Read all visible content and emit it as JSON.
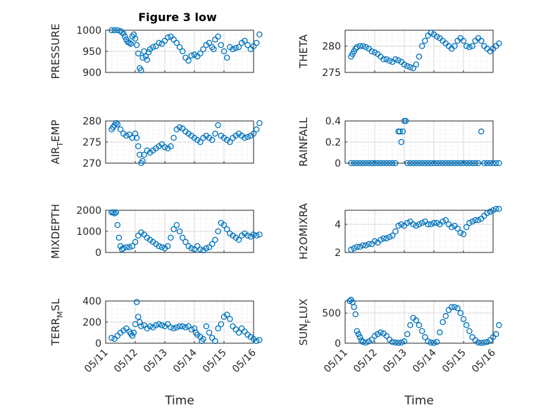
{
  "title": "Figure 3 low",
  "style": {
    "marker_color": "#0072BD",
    "axis_color": "#262626",
    "grid_color": "#d9d9d9",
    "background": "#ffffff"
  },
  "chart_data": [
    {
      "type": "scatter",
      "title": "Figure 3 low",
      "ylabel": "PRESSURE",
      "ylim": [
        900,
        1000
      ],
      "yticks": [
        900,
        950,
        1000
      ],
      "xlim": [
        0,
        5
      ],
      "grid": true,
      "minor_grid": true,
      "xlabel": "",
      "xticklabels": [],
      "series": [
        {
          "x": [
            0.2,
            0.3,
            0.4,
            0.5,
            0.55,
            0.6,
            0.65,
            0.7,
            0.75,
            0.8,
            0.85,
            0.9,
            0.95,
            1.0,
            1.05,
            1.1,
            1.15,
            1.2,
            1.25,
            1.3,
            1.35,
            1.4,
            1.45,
            1.5,
            1.6,
            1.7,
            1.8,
            1.9,
            2.0,
            2.1,
            2.2,
            2.3,
            2.4,
            2.5,
            2.6,
            2.7,
            2.8,
            2.9,
            3.0,
            3.1,
            3.2,
            3.3,
            3.4,
            3.5,
            3.6,
            3.65,
            3.7,
            3.8,
            3.9,
            4.0,
            4.1,
            4.2,
            4.3,
            4.4,
            4.5,
            4.6,
            4.7,
            4.8,
            4.9,
            5.0,
            5.1,
            5.2
          ],
          "y": [
            1000,
            1000,
            1000,
            998,
            995,
            992,
            985,
            978,
            972,
            970,
            968,
            985,
            990,
            980,
            965,
            945,
            910,
            905,
            935,
            950,
            938,
            930,
            948,
            955,
            960,
            962,
            970,
            968,
            975,
            983,
            985,
            978,
            970,
            960,
            950,
            935,
            928,
            940,
            942,
            938,
            945,
            955,
            965,
            970,
            960,
            955,
            978,
            985,
            965,
            950,
            935,
            960,
            955,
            958,
            960,
            970,
            975,
            965,
            955,
            962,
            970,
            990
          ]
        }
      ]
    },
    {
      "type": "scatter",
      "ylabel": "THETA",
      "ylim": [
        275,
        283
      ],
      "yticks": [
        275,
        280
      ],
      "xlim": [
        0,
        5
      ],
      "grid": true,
      "minor_grid": true,
      "xlabel": "",
      "xticklabels": [],
      "series": [
        {
          "x": [
            0.2,
            0.25,
            0.3,
            0.35,
            0.4,
            0.5,
            0.6,
            0.7,
            0.8,
            0.9,
            1.0,
            1.1,
            1.2,
            1.3,
            1.4,
            1.5,
            1.6,
            1.7,
            1.8,
            1.9,
            2.0,
            2.1,
            2.2,
            2.3,
            2.4,
            2.5,
            2.6,
            2.7,
            2.8,
            2.9,
            3.0,
            3.1,
            3.2,
            3.3,
            3.4,
            3.5,
            3.6,
            3.7,
            3.8,
            3.9,
            4.0,
            4.1,
            4.2,
            4.3,
            4.4,
            4.5,
            4.6,
            4.7,
            4.8,
            4.9,
            5.0,
            5.1,
            5.2
          ],
          "y": [
            278,
            278.5,
            279,
            279.5,
            279.8,
            280,
            280,
            279.8,
            279.5,
            279,
            278.8,
            278.5,
            278,
            277.5,
            277.5,
            277.2,
            277,
            277.5,
            277.3,
            277,
            276.5,
            276.2,
            276,
            275.8,
            276.5,
            278,
            280,
            281,
            282,
            282.5,
            282.2,
            281.8,
            281.5,
            281,
            280.5,
            280,
            279.5,
            280,
            281,
            281.5,
            281,
            280,
            279.8,
            280,
            281,
            281.5,
            281,
            280,
            279.5,
            279,
            279.5,
            280,
            280.5
          ]
        }
      ]
    },
    {
      "type": "scatter",
      "ylabel": "AIR_TEMP",
      "ylim": [
        270,
        280
      ],
      "yticks": [
        270,
        275,
        280
      ],
      "xlim": [
        0,
        5
      ],
      "grid": true,
      "minor_grid": true,
      "xlabel": "",
      "xticklabels": [],
      "series": [
        {
          "x": [
            0.2,
            0.25,
            0.3,
            0.35,
            0.4,
            0.5,
            0.6,
            0.7,
            0.8,
            0.9,
            1.0,
            1.05,
            1.1,
            1.15,
            1.2,
            1.25,
            1.3,
            1.4,
            1.5,
            1.6,
            1.7,
            1.8,
            1.9,
            2.0,
            2.1,
            2.2,
            2.3,
            2.4,
            2.5,
            2.6,
            2.7,
            2.8,
            2.9,
            3.0,
            3.1,
            3.2,
            3.3,
            3.4,
            3.5,
            3.6,
            3.7,
            3.8,
            3.9,
            4.0,
            4.1,
            4.2,
            4.3,
            4.4,
            4.5,
            4.6,
            4.7,
            4.8,
            4.9,
            5.0,
            5.1,
            5.2
          ],
          "y": [
            278,
            278.5,
            279,
            279.5,
            279.2,
            278,
            277,
            276.5,
            276.8,
            276,
            277,
            276,
            274,
            272,
            270,
            270.5,
            272,
            273,
            272.5,
            273,
            273.5,
            274,
            274.5,
            273.8,
            273.5,
            274,
            276,
            278,
            278.5,
            278.2,
            277.5,
            277,
            276.5,
            276,
            275.5,
            275,
            276,
            276.5,
            276,
            275.5,
            277,
            279,
            276.5,
            276,
            275.5,
            275,
            276,
            276.5,
            277,
            276.5,
            276,
            276.2,
            276.5,
            277,
            278,
            279.5
          ]
        }
      ]
    },
    {
      "type": "scatter",
      "ylabel": "RAINFALL",
      "ylim": [
        0,
        0.4
      ],
      "yticks": [
        0,
        0.2,
        0.4
      ],
      "xlim": [
        0,
        5
      ],
      "grid": true,
      "minor_grid": true,
      "xlabel": "",
      "xticklabels": [],
      "series": [
        {
          "x": [
            0.2,
            0.3,
            0.4,
            0.5,
            0.6,
            0.7,
            0.8,
            0.9,
            1.0,
            1.1,
            1.2,
            1.3,
            1.4,
            1.5,
            1.6,
            1.7,
            1.8,
            1.85,
            1.9,
            1.95,
            2.0,
            2.05,
            2.1,
            2.2,
            2.3,
            2.4,
            2.5,
            2.6,
            2.7,
            2.8,
            2.9,
            3.0,
            3.1,
            3.2,
            3.3,
            3.4,
            3.5,
            3.6,
            3.7,
            3.8,
            3.9,
            4.0,
            4.1,
            4.2,
            4.3,
            4.4,
            4.5,
            4.6,
            4.7,
            4.8,
            4.9,
            5.0,
            5.1,
            5.2
          ],
          "y": [
            0,
            0,
            0,
            0,
            0,
            0,
            0,
            0,
            0,
            0,
            0,
            0,
            0,
            0,
            0,
            0,
            0.3,
            0.3,
            0.2,
            0.3,
            0.4,
            0.4,
            0,
            0,
            0,
            0,
            0,
            0,
            0,
            0,
            0,
            0,
            0,
            0,
            0,
            0,
            0,
            0,
            0,
            0,
            0,
            0,
            0,
            0,
            0,
            0,
            0,
            0.3,
            0,
            0,
            0,
            0,
            0,
            0
          ]
        }
      ]
    },
    {
      "type": "scatter",
      "ylabel": "MIXDEPTH",
      "ylim": [
        0,
        2000
      ],
      "yticks": [
        0,
        1000,
        2000
      ],
      "xlim": [
        0,
        5
      ],
      "grid": true,
      "minor_grid": true,
      "xlabel": "",
      "xticklabels": [],
      "series": [
        {
          "x": [
            0.2,
            0.25,
            0.3,
            0.35,
            0.4,
            0.45,
            0.5,
            0.55,
            0.6,
            0.7,
            0.8,
            0.9,
            1.0,
            1.1,
            1.2,
            1.3,
            1.4,
            1.5,
            1.6,
            1.7,
            1.8,
            1.9,
            2.0,
            2.1,
            2.2,
            2.3,
            2.4,
            2.5,
            2.6,
            2.7,
            2.8,
            2.9,
            3.0,
            3.1,
            3.2,
            3.3,
            3.4,
            3.5,
            3.6,
            3.7,
            3.8,
            3.9,
            4.0,
            4.1,
            4.2,
            4.3,
            4.4,
            4.5,
            4.6,
            4.7,
            4.8,
            4.9,
            5.0,
            5.1,
            5.2
          ],
          "y": [
            1900,
            1900,
            1850,
            1900,
            1300,
            700,
            300,
            150,
            200,
            250,
            250,
            300,
            500,
            800,
            950,
            850,
            700,
            600,
            500,
            400,
            300,
            250,
            200,
            300,
            700,
            1100,
            1300,
            1000,
            700,
            500,
            300,
            200,
            150,
            300,
            150,
            100,
            200,
            250,
            400,
            600,
            1000,
            1400,
            1300,
            1100,
            900,
            800,
            700,
            600,
            800,
            900,
            800,
            750,
            850,
            800,
            850
          ]
        }
      ]
    },
    {
      "type": "scatter",
      "ylabel": "H2OMIXRA",
      "ylim": [
        2,
        5
      ],
      "yticks": [
        2,
        4
      ],
      "xlim": [
        0,
        5
      ],
      "grid": true,
      "minor_grid": true,
      "xlabel": "",
      "xticklabels": [],
      "series": [
        {
          "x": [
            0.2,
            0.3,
            0.4,
            0.5,
            0.6,
            0.7,
            0.8,
            0.9,
            1.0,
            1.1,
            1.2,
            1.3,
            1.4,
            1.5,
            1.6,
            1.7,
            1.8,
            1.9,
            2.0,
            2.1,
            2.2,
            2.3,
            2.4,
            2.5,
            2.6,
            2.7,
            2.8,
            2.9,
            3.0,
            3.1,
            3.2,
            3.3,
            3.4,
            3.5,
            3.6,
            3.7,
            3.8,
            3.9,
            4.0,
            4.1,
            4.2,
            4.3,
            4.4,
            4.5,
            4.6,
            4.7,
            4.8,
            4.9,
            5.0,
            5.1,
            5.2
          ],
          "y": [
            2.2,
            2.3,
            2.4,
            2.4,
            2.5,
            2.5,
            2.6,
            2.6,
            2.8,
            2.7,
            2.9,
            3.0,
            3.0,
            3.1,
            3.2,
            3.5,
            3.9,
            4.0,
            3.9,
            4.1,
            4.2,
            4.0,
            3.9,
            4.0,
            4.1,
            4.2,
            4.0,
            4.0,
            4.1,
            4.1,
            4.0,
            4.2,
            4.3,
            4.0,
            3.8,
            3.9,
            3.7,
            3.4,
            3.3,
            3.8,
            4.1,
            4.2,
            4.3,
            4.3,
            4.4,
            4.6,
            4.8,
            4.9,
            5.0,
            5.1,
            5.1
          ]
        }
      ]
    },
    {
      "type": "scatter",
      "ylabel": "TERR_MSL",
      "ylim": [
        0,
        400
      ],
      "yticks": [
        0,
        200,
        400
      ],
      "xlim": [
        0,
        5
      ],
      "grid": true,
      "minor_grid": true,
      "xlabel": "Time",
      "xticklabels": [
        "05/11",
        "05/12",
        "05/13",
        "05/14",
        "05/15",
        "05/16"
      ],
      "series": [
        {
          "x": [
            0.2,
            0.3,
            0.4,
            0.5,
            0.6,
            0.7,
            0.8,
            0.85,
            0.9,
            0.95,
            1.0,
            1.05,
            1.1,
            1.15,
            1.2,
            1.3,
            1.4,
            1.5,
            1.6,
            1.7,
            1.8,
            1.9,
            2.0,
            2.1,
            2.2,
            2.3,
            2.4,
            2.5,
            2.6,
            2.7,
            2.8,
            2.9,
            3.0,
            3.05,
            3.1,
            3.2,
            3.25,
            3.3,
            3.4,
            3.5,
            3.6,
            3.7,
            3.8,
            3.9,
            4.0,
            4.1,
            4.2,
            4.3,
            4.4,
            4.5,
            4.6,
            4.7,
            4.8,
            4.9,
            5.0,
            5.1,
            5.2
          ],
          "y": [
            50,
            40,
            70,
            100,
            120,
            140,
            110,
            90,
            70,
            100,
            180,
            390,
            250,
            200,
            160,
            170,
            140,
            160,
            150,
            170,
            180,
            170,
            160,
            180,
            150,
            140,
            150,
            160,
            160,
            150,
            160,
            130,
            140,
            100,
            80,
            60,
            20,
            40,
            160,
            100,
            50,
            20,
            140,
            180,
            250,
            270,
            230,
            160,
            130,
            100,
            140,
            110,
            80,
            60,
            40,
            20,
            30
          ]
        }
      ]
    },
    {
      "type": "scatter",
      "ylabel": "SUN_FLUX",
      "ylim": [
        0,
        700
      ],
      "yticks": [
        0,
        500
      ],
      "xlim": [
        0,
        5
      ],
      "grid": true,
      "minor_grid": true,
      "xlabel": "Time",
      "xticklabels": [
        "05/11",
        "05/12",
        "05/13",
        "05/14",
        "05/15",
        "05/16"
      ],
      "series": [
        {
          "x": [
            0.15,
            0.2,
            0.25,
            0.3,
            0.35,
            0.4,
            0.45,
            0.5,
            0.55,
            0.6,
            0.7,
            0.8,
            0.9,
            1.0,
            1.1,
            1.2,
            1.3,
            1.4,
            1.5,
            1.6,
            1.7,
            1.8,
            1.9,
            2.0,
            2.1,
            2.2,
            2.3,
            2.4,
            2.5,
            2.6,
            2.7,
            2.8,
            2.9,
            3.0,
            3.1,
            3.2,
            3.3,
            3.4,
            3.5,
            3.6,
            3.7,
            3.8,
            3.9,
            4.0,
            4.1,
            4.2,
            4.3,
            4.4,
            4.5,
            4.6,
            4.7,
            4.8,
            4.9,
            5.0,
            5.1,
            5.2
          ],
          "y": [
            700,
            720,
            680,
            600,
            480,
            200,
            150,
            100,
            50,
            20,
            10,
            30,
            60,
            120,
            150,
            180,
            160,
            120,
            60,
            20,
            10,
            5,
            10,
            30,
            150,
            300,
            420,
            380,
            300,
            200,
            100,
            30,
            10,
            5,
            20,
            180,
            350,
            450,
            550,
            600,
            600,
            580,
            500,
            400,
            300,
            200,
            100,
            50,
            10,
            5,
            10,
            20,
            50,
            100,
            150,
            300
          ]
        }
      ]
    }
  ]
}
